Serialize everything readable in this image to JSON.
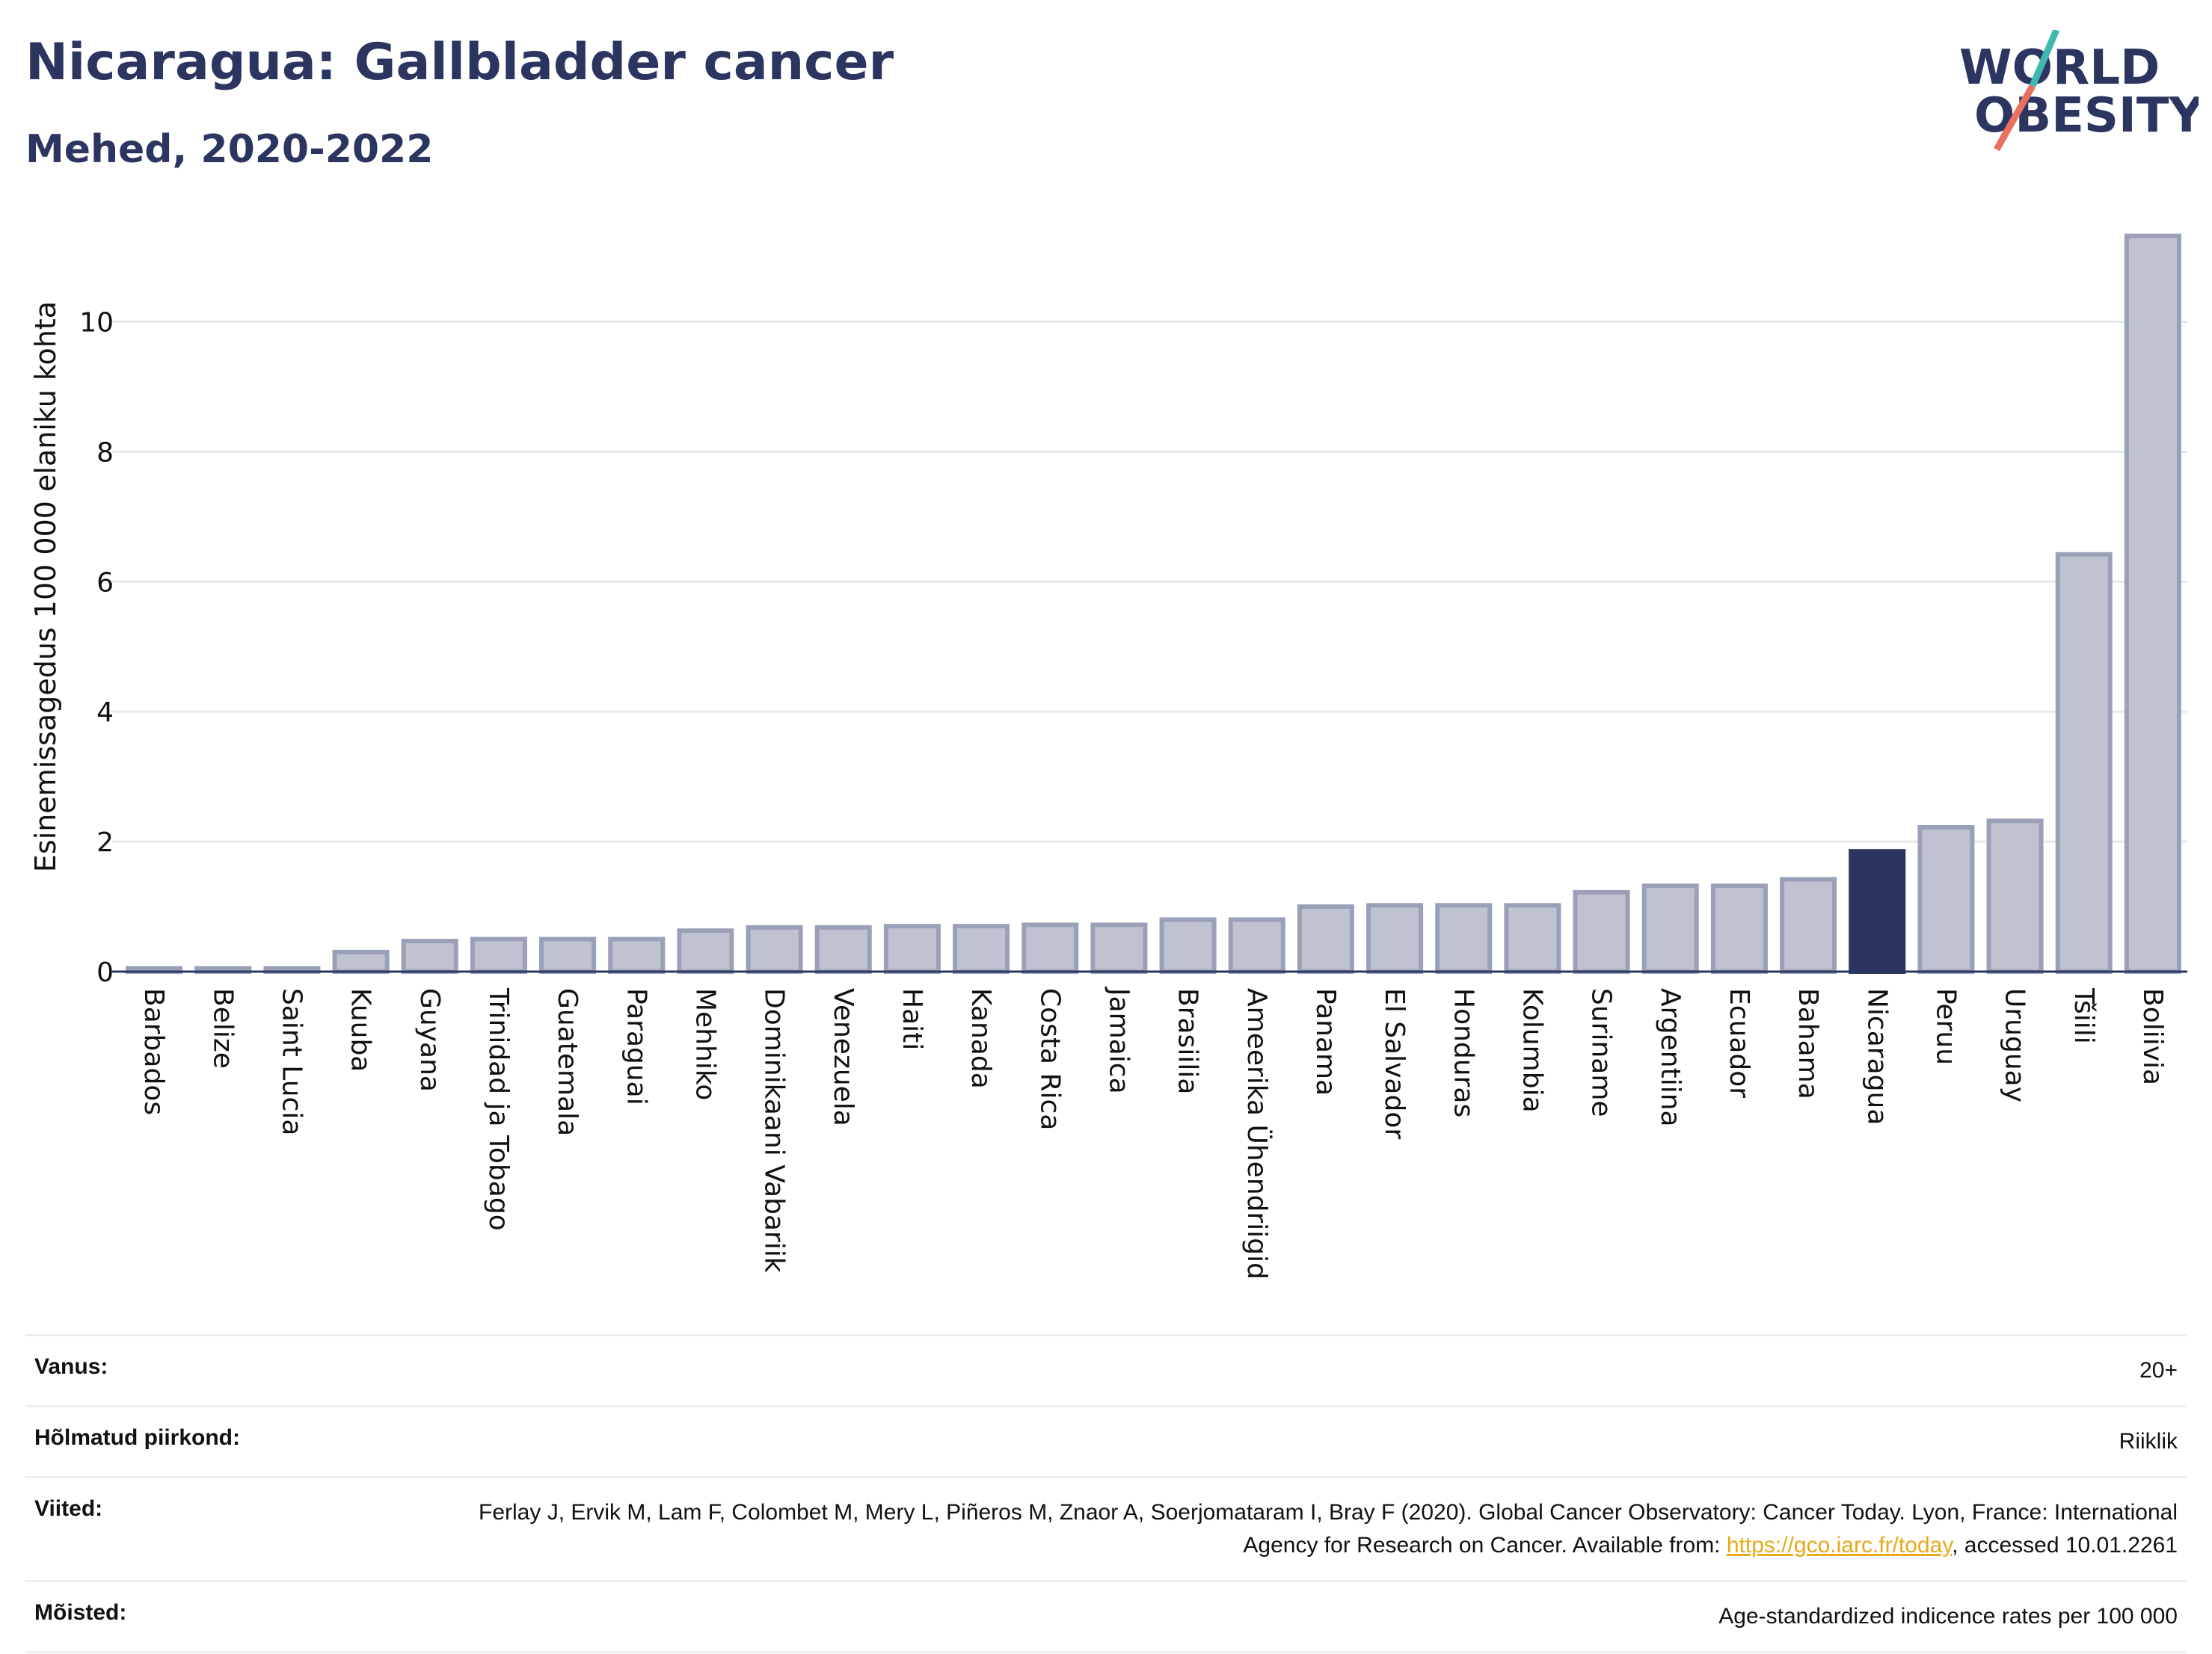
{
  "header": {
    "title": "Nicaragua: Gallbladder cancer",
    "subtitle": "Mehed, 2020-2022"
  },
  "logo": {
    "line1": "WORLD",
    "line2": "OBESITY",
    "accent_colors": [
      "#3fb8b0",
      "#e8705f"
    ]
  },
  "colors": {
    "bar_default": "#bfc3d1",
    "bar_outline": "#9aa0b8",
    "bar_highlight": "#2c3560",
    "title": "#2c3560",
    "link": "#e6a917"
  },
  "chart_data": {
    "type": "bar",
    "title": "Nicaragua: Gallbladder cancer",
    "subtitle": "Mehed, 2020-2022",
    "ylabel": "Esinemissagedus 100 000 elaniku kohta",
    "xlabel": "",
    "ylim": [
      0,
      11.5
    ],
    "yticks": [
      0,
      2,
      4,
      6,
      8,
      10
    ],
    "grid": true,
    "highlight": "Nicaragua",
    "categories": [
      "Barbados",
      "Belize",
      "Saint Lucia",
      "Kuuba",
      "Guyana",
      "Trinidad ja Tobago",
      "Guatemala",
      "Paraguai",
      "Mehhiko",
      "Dominikaani Vabariik",
      "Venezuela",
      "Haiti",
      "Kanada",
      "Costa Rica",
      "Jamaica",
      "Brasiilia",
      "Ameerika Ühendriigid",
      "Panama",
      "El Salvador",
      "Honduras",
      "Kolumbia",
      "Suriname",
      "Argentiina",
      "Ecuador",
      "Bahama",
      "Nicaragua",
      "Peruu",
      "Uruguay",
      "Tšiili",
      "Boliivia"
    ],
    "values": [
      0.05,
      0.05,
      0.05,
      0.3,
      0.47,
      0.5,
      0.5,
      0.5,
      0.63,
      0.68,
      0.68,
      0.7,
      0.7,
      0.72,
      0.72,
      0.8,
      0.8,
      1.0,
      1.02,
      1.02,
      1.02,
      1.22,
      1.32,
      1.32,
      1.42,
      1.85,
      2.22,
      2.32,
      6.42,
      11.32
    ]
  },
  "info": {
    "age_label": "Vanus:",
    "age_value": "20+",
    "region_label": "Hõlmatud piirkond:",
    "region_value": "Riiklik",
    "refs_label": "Viited:",
    "refs_text_1": "Ferlay J, Ervik M, Lam F, Colombet M, Mery L, Piñeros M, Znaor A, Soerjomataram I, Bray F (2020). Global Cancer Observatory: Cancer Today. Lyon, France: International Agency for Research on Cancer. Available from: ",
    "refs_link": "https://gco.iarc.fr/today",
    "refs_text_2": ", accessed 10.01.2261",
    "defs_label": "Mõisted:",
    "defs_value": "Age-standardized indicence rates per 100 000"
  }
}
